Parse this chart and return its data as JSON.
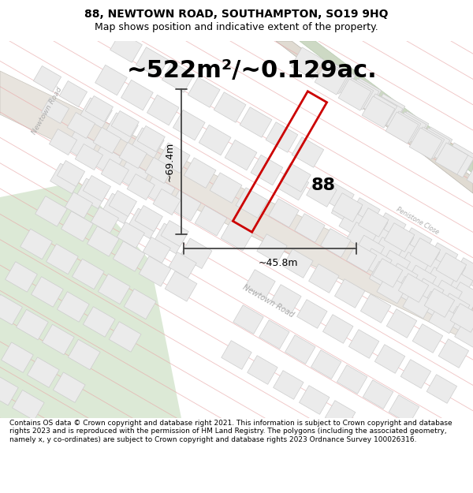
{
  "title_line1": "88, NEWTOWN ROAD, SOUTHAMPTON, SO19 9HQ",
  "title_line2": "Map shows position and indicative extent of the property.",
  "area_text": "~522m²/~0.129ac.",
  "dim_width": "~45.8m",
  "dim_height": "~69.4m",
  "property_label": "88",
  "footer_text": "Contains OS data © Crown copyright and database right 2021. This information is subject to Crown copyright and database rights 2023 and is reproduced with the permission of HM Land Registry. The polygons (including the associated geometry, namely x, y co-ordinates) are subject to Crown copyright and database rights 2023 Ordnance Survey 100026316.",
  "map_bg": "#f7f4f0",
  "road_color": "#e0dbd4",
  "property_line_color": "#cc0000",
  "dim_line_color": "#444444",
  "hatch_color": "#e8a8a8",
  "building_face": "#ebebeb",
  "building_edge": "#cccccc",
  "green_color": "#cdd9c4",
  "green_area_color": "#dce8d8",
  "road_label_color": "#aaaaaa",
  "fig_width": 6.0,
  "fig_height": 6.25,
  "dpi": 100,
  "title_fontsize": 10,
  "subtitle_fontsize": 9,
  "area_fontsize": 22,
  "label_fontsize": 16,
  "dim_fontsize": 9,
  "footer_fontsize": 6.5
}
